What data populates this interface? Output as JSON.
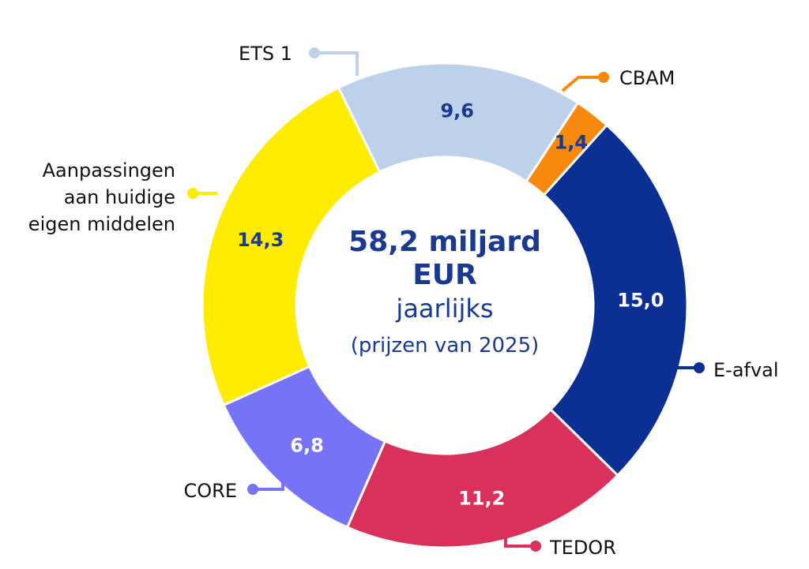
{
  "chart_data": {
    "type": "pie",
    "variant": "donut",
    "center": {
      "line1": "58,2 miljard",
      "line2": "EUR",
      "line3": "jaarlijks",
      "line4": "(prijzen van 2025)"
    },
    "slices": [
      {
        "name": "ETS 1",
        "legend": [
          "ETS 1"
        ],
        "value": 9.6,
        "value_label": "9,6",
        "color": "#bdd1ea",
        "value_color": "#1a3a8f",
        "leader_color": "#bdd1ea"
      },
      {
        "name": "CBAM",
        "legend": [
          "CBAM"
        ],
        "value": 1.4,
        "value_label": "1,4",
        "color": "#f7890e",
        "value_color": "#1a3a8f",
        "leader_color": "#f7890e"
      },
      {
        "name": "E-afval",
        "legend": [
          "E-afval"
        ],
        "value": 15.0,
        "value_label": "15,0",
        "color": "#0b2f93",
        "value_color": "#ffffff",
        "leader_color": "#0b2f93"
      },
      {
        "name": "TEDOR",
        "legend": [
          "TEDOR"
        ],
        "value": 11.2,
        "value_label": "11,2",
        "color": "#d9315c",
        "value_color": "#ffffff",
        "leader_color": "#d9315c"
      },
      {
        "name": "CORE",
        "legend": [
          "CORE"
        ],
        "value": 6.8,
        "value_label": "6,8",
        "color": "#7673f7",
        "value_color": "#ffffff",
        "leader_color": "#7673f7"
      },
      {
        "name": "Aanpassingen aan huidige eigen middelen",
        "legend": [
          "Aanpassingen",
          "aan huidige",
          "eigen middelen"
        ],
        "value": 14.3,
        "value_label": "14,3",
        "color": "#ffec00",
        "value_color": "#1a3a8f",
        "leader_color": "#ffec00"
      }
    ]
  }
}
